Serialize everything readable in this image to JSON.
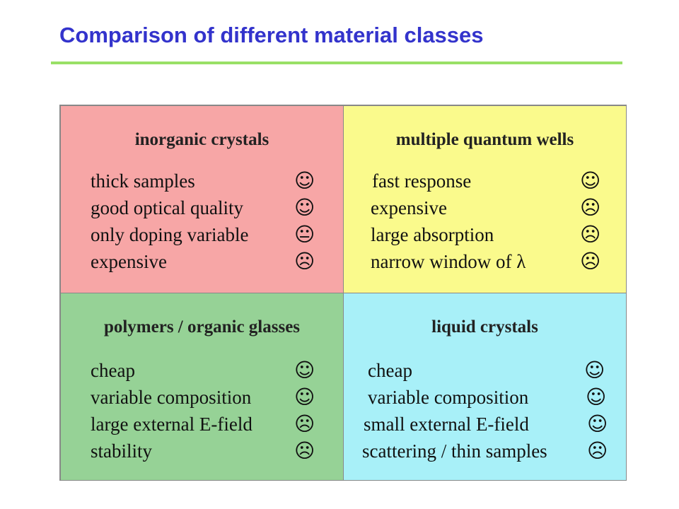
{
  "title": "Comparison of different material classes",
  "colors": {
    "title": "#3333cc",
    "rule": "#99e066",
    "inorganic": "#f7a6a6",
    "mqw": "#fafa8c",
    "polymers": "#96d296",
    "liquid": "#a8f0f8"
  },
  "cells": [
    {
      "heading": "inorganic crystals",
      "items": [
        {
          "text": "thick samples",
          "icon": "smiley-icon",
          "glyph": "☺"
        },
        {
          "text": "good optical quality",
          "icon": "smiley-icon",
          "glyph": "☺"
        },
        {
          "text": "only doping variable",
          "icon": "neutral-face-icon",
          "glyph": "😐"
        },
        {
          "text": "expensive",
          "icon": "frown-icon",
          "glyph": "☹"
        }
      ]
    },
    {
      "heading": "multiple quantum wells",
      "items": [
        {
          "text": "fast response",
          "icon": "smiley-icon",
          "glyph": "☺"
        },
        {
          "text": "expensive",
          "icon": "frown-icon",
          "glyph": "☹"
        },
        {
          "text": "large absorption",
          "icon": "frown-icon",
          "glyph": "☹"
        },
        {
          "text": "narrow window of λ",
          "icon": "frown-icon",
          "glyph": "☹"
        }
      ]
    },
    {
      "heading": "polymers / organic glasses",
      "items": [
        {
          "text": "cheap",
          "icon": "smiley-icon",
          "glyph": "☺"
        },
        {
          "text": "variable composition",
          "icon": "smiley-icon",
          "glyph": "☺"
        },
        {
          "text": "large external E-field",
          "icon": "frown-icon",
          "glyph": "☹"
        },
        {
          "text": "stability",
          "icon": "frown-icon",
          "glyph": "☹"
        }
      ]
    },
    {
      "heading": "liquid crystals",
      "items": [
        {
          "text": "cheap",
          "icon": "smiley-icon",
          "glyph": "☺"
        },
        {
          "text": "variable composition",
          "icon": "smiley-icon",
          "glyph": "☺"
        },
        {
          "text": "small external E-field",
          "icon": "smiley-icon",
          "glyph": "☺"
        },
        {
          "text": "scattering / thin samples",
          "icon": "frown-icon",
          "glyph": "☹"
        }
      ]
    }
  ]
}
